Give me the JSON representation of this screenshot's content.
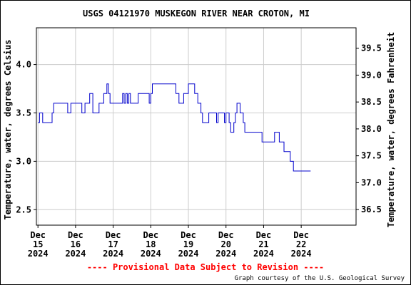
{
  "chart_data": {
    "type": "line",
    "title": "USGS 04121970 MUSKEGON RIVER NEAR CROTON, MI",
    "ylabel_left": "Temperature, water, degrees Celsius",
    "ylabel_right": "Temperature, water, degrees Fahrenheit",
    "footer_notice": "---- Provisional Data Subject to Revision ----",
    "credit": "Graph courtesy of the U.S. Geological Survey",
    "colors": {
      "series": "#0000cc",
      "grid": "#cccccc",
      "notice": "#ff0000",
      "axis": "#000000"
    },
    "grid": true,
    "x_domain": [
      "2024-12-14T23:00",
      "2024-12-23T11:00"
    ],
    "ylim_celsius": [
      2.34,
      4.38
    ],
    "ylim_fahrenheit": [
      36.21,
      39.88
    ],
    "x_ticks": [
      {
        "date": "2024-12-15",
        "line1": "Dec",
        "line2": "15",
        "line3": "2024"
      },
      {
        "date": "2024-12-16",
        "line1": "Dec",
        "line2": "16",
        "line3": "2024"
      },
      {
        "date": "2024-12-17",
        "line1": "Dec",
        "line2": "17",
        "line3": "2024"
      },
      {
        "date": "2024-12-18",
        "line1": "Dec",
        "line2": "18",
        "line3": "2024"
      },
      {
        "date": "2024-12-19",
        "line1": "Dec",
        "line2": "19",
        "line3": "2024"
      },
      {
        "date": "2024-12-20",
        "line1": "Dec",
        "line2": "20",
        "line3": "2024"
      },
      {
        "date": "2024-12-21",
        "line1": "Dec",
        "line2": "21",
        "line3": "2024"
      },
      {
        "date": "2024-12-22",
        "line1": "Dec",
        "line2": "22",
        "line3": "2024"
      }
    ],
    "y_ticks_left": [
      {
        "value": 2.5,
        "label": "2.5"
      },
      {
        "value": 3.0,
        "label": "3.0"
      },
      {
        "value": 3.5,
        "label": "3.5"
      },
      {
        "value": 4.0,
        "label": "4.0"
      }
    ],
    "y_ticks_right": [
      {
        "value": 36.5,
        "label": "36.5"
      },
      {
        "value": 37.0,
        "label": "37.0"
      },
      {
        "value": 37.5,
        "label": "37.5"
      },
      {
        "value": 38.0,
        "label": "38.0"
      },
      {
        "value": 38.5,
        "label": "38.5"
      },
      {
        "value": 39.0,
        "label": "39.0"
      },
      {
        "value": 39.5,
        "label": "39.5"
      }
    ],
    "series": [
      {
        "values_celsius": [
          [
            "2024-12-15T00:00",
            3.4
          ],
          [
            "2024-12-15T01:00",
            3.5
          ],
          [
            "2024-12-15T02:00",
            3.5
          ],
          [
            "2024-12-15T03:00",
            3.4
          ],
          [
            "2024-12-15T08:00",
            3.4
          ],
          [
            "2024-12-15T09:00",
            3.5
          ],
          [
            "2024-12-15T10:00",
            3.6
          ],
          [
            "2024-12-15T18:00",
            3.6
          ],
          [
            "2024-12-15T19:00",
            3.5
          ],
          [
            "2024-12-15T20:00",
            3.5
          ],
          [
            "2024-12-15T21:00",
            3.6
          ],
          [
            "2024-12-16T03:00",
            3.6
          ],
          [
            "2024-12-16T04:00",
            3.5
          ],
          [
            "2024-12-16T05:00",
            3.5
          ],
          [
            "2024-12-16T06:00",
            3.6
          ],
          [
            "2024-12-16T08:00",
            3.6
          ],
          [
            "2024-12-16T09:00",
            3.7
          ],
          [
            "2024-12-16T10:00",
            3.7
          ],
          [
            "2024-12-16T11:00",
            3.5
          ],
          [
            "2024-12-16T14:00",
            3.5
          ],
          [
            "2024-12-16T15:00",
            3.6
          ],
          [
            "2024-12-16T17:00",
            3.6
          ],
          [
            "2024-12-16T18:00",
            3.7
          ],
          [
            "2024-12-16T19:00",
            3.7
          ],
          [
            "2024-12-16T20:00",
            3.8
          ],
          [
            "2024-12-16T21:00",
            3.7
          ],
          [
            "2024-12-16T22:00",
            3.6
          ],
          [
            "2024-12-17T05:00",
            3.6
          ],
          [
            "2024-12-17T06:00",
            3.7
          ],
          [
            "2024-12-17T07:00",
            3.6
          ],
          [
            "2024-12-17T08:00",
            3.7
          ],
          [
            "2024-12-17T09:00",
            3.6
          ],
          [
            "2024-12-17T10:00",
            3.7
          ],
          [
            "2024-12-17T11:00",
            3.6
          ],
          [
            "2024-12-17T15:00",
            3.6
          ],
          [
            "2024-12-17T16:00",
            3.7
          ],
          [
            "2024-12-17T22:00",
            3.7
          ],
          [
            "2024-12-17T23:00",
            3.6
          ],
          [
            "2024-12-18T00:00",
            3.7
          ],
          [
            "2024-12-18T01:00",
            3.8
          ],
          [
            "2024-12-18T15:00",
            3.8
          ],
          [
            "2024-12-18T16:00",
            3.7
          ],
          [
            "2024-12-18T18:00",
            3.6
          ],
          [
            "2024-12-18T21:00",
            3.7
          ],
          [
            "2024-12-19T00:00",
            3.8
          ],
          [
            "2024-12-19T03:00",
            3.8
          ],
          [
            "2024-12-19T04:00",
            3.7
          ],
          [
            "2024-12-19T06:00",
            3.6
          ],
          [
            "2024-12-19T08:00",
            3.5
          ],
          [
            "2024-12-19T09:00",
            3.4
          ],
          [
            "2024-12-19T12:00",
            3.4
          ],
          [
            "2024-12-19T13:00",
            3.5
          ],
          [
            "2024-12-19T17:00",
            3.5
          ],
          [
            "2024-12-19T18:00",
            3.4
          ],
          [
            "2024-12-19T19:00",
            3.5
          ],
          [
            "2024-12-19T22:00",
            3.5
          ],
          [
            "2024-12-19T23:00",
            3.4
          ],
          [
            "2024-12-20T00:00",
            3.5
          ],
          [
            "2024-12-20T02:00",
            3.4
          ],
          [
            "2024-12-20T03:00",
            3.3
          ],
          [
            "2024-12-20T05:00",
            3.4
          ],
          [
            "2024-12-20T06:00",
            3.5
          ],
          [
            "2024-12-20T07:00",
            3.6
          ],
          [
            "2024-12-20T09:00",
            3.5
          ],
          [
            "2024-12-20T11:00",
            3.4
          ],
          [
            "2024-12-20T12:00",
            3.3
          ],
          [
            "2024-12-20T22:00",
            3.3
          ],
          [
            "2024-12-20T23:00",
            3.2
          ],
          [
            "2024-12-21T06:00",
            3.2
          ],
          [
            "2024-12-21T07:00",
            3.3
          ],
          [
            "2024-12-21T09:00",
            3.3
          ],
          [
            "2024-12-21T10:00",
            3.2
          ],
          [
            "2024-12-21T13:00",
            3.1
          ],
          [
            "2024-12-21T17:00",
            3.0
          ],
          [
            "2024-12-21T19:00",
            2.9
          ],
          [
            "2024-12-22T06:00",
            2.9
          ]
        ]
      }
    ]
  }
}
